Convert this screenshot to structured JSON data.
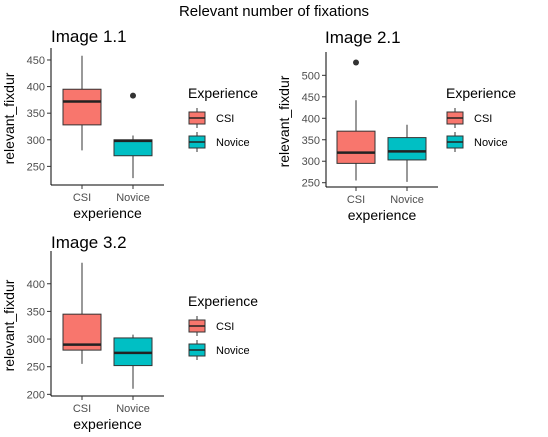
{
  "figure_title": "Relevant number of fixations",
  "colors": {
    "CSI": "#F8766D",
    "Novice": "#00BFC4"
  },
  "chart_data": [
    {
      "type": "box",
      "title": "Image 1.1",
      "xlabel": "experience",
      "ylabel": "relevant_fixdur",
      "categories": [
        "CSI",
        "Novice"
      ],
      "ylim": [
        215,
        465
      ],
      "yticks": [
        250,
        300,
        350,
        400,
        450
      ],
      "legend": {
        "title": "Experience",
        "items": [
          "CSI",
          "Novice"
        ],
        "placement": "right"
      },
      "boxes": [
        {
          "group": "CSI",
          "whisker_low": 280,
          "q1": 328,
          "median": 372,
          "q3": 395,
          "whisker_high": 458,
          "outliers": []
        },
        {
          "group": "Novice",
          "whisker_low": 228,
          "q1": 270,
          "median": 298,
          "q3": 300,
          "whisker_high": 308,
          "outliers": [
            383
          ]
        }
      ]
    },
    {
      "type": "box",
      "title": "Image 2.1",
      "xlabel": "experience",
      "ylabel": "relevant_fixdur",
      "categories": [
        "CSI",
        "Novice"
      ],
      "ylim": [
        240,
        545
      ],
      "yticks": [
        250,
        300,
        350,
        400,
        450,
        500
      ],
      "legend": {
        "title": "Experience",
        "items": [
          "CSI",
          "Novice"
        ],
        "placement": "right"
      },
      "boxes": [
        {
          "group": "CSI",
          "whisker_low": 255,
          "q1": 295,
          "median": 320,
          "q3": 370,
          "whisker_high": 442,
          "outliers": [
            530
          ]
        },
        {
          "group": "Novice",
          "whisker_low": 252,
          "q1": 303,
          "median": 323,
          "q3": 355,
          "whisker_high": 385,
          "outliers": []
        }
      ]
    },
    {
      "type": "box",
      "title": "Image 3.2",
      "xlabel": "experience",
      "ylabel": "relevant_fixdur",
      "categories": [
        "CSI",
        "Novice"
      ],
      "ylim": [
        197,
        452
      ],
      "yticks": [
        200,
        250,
        300,
        350,
        400
      ],
      "legend": {
        "title": "Experience",
        "items": [
          "CSI",
          "Novice"
        ],
        "placement": "right"
      },
      "boxes": [
        {
          "group": "CSI",
          "whisker_low": 255,
          "q1": 280,
          "median": 290,
          "q3": 345,
          "whisker_high": 438,
          "outliers": []
        },
        {
          "group": "Novice",
          "whisker_low": 210,
          "q1": 252,
          "median": 275,
          "q3": 302,
          "whisker_high": 308,
          "outliers": []
        }
      ]
    }
  ]
}
